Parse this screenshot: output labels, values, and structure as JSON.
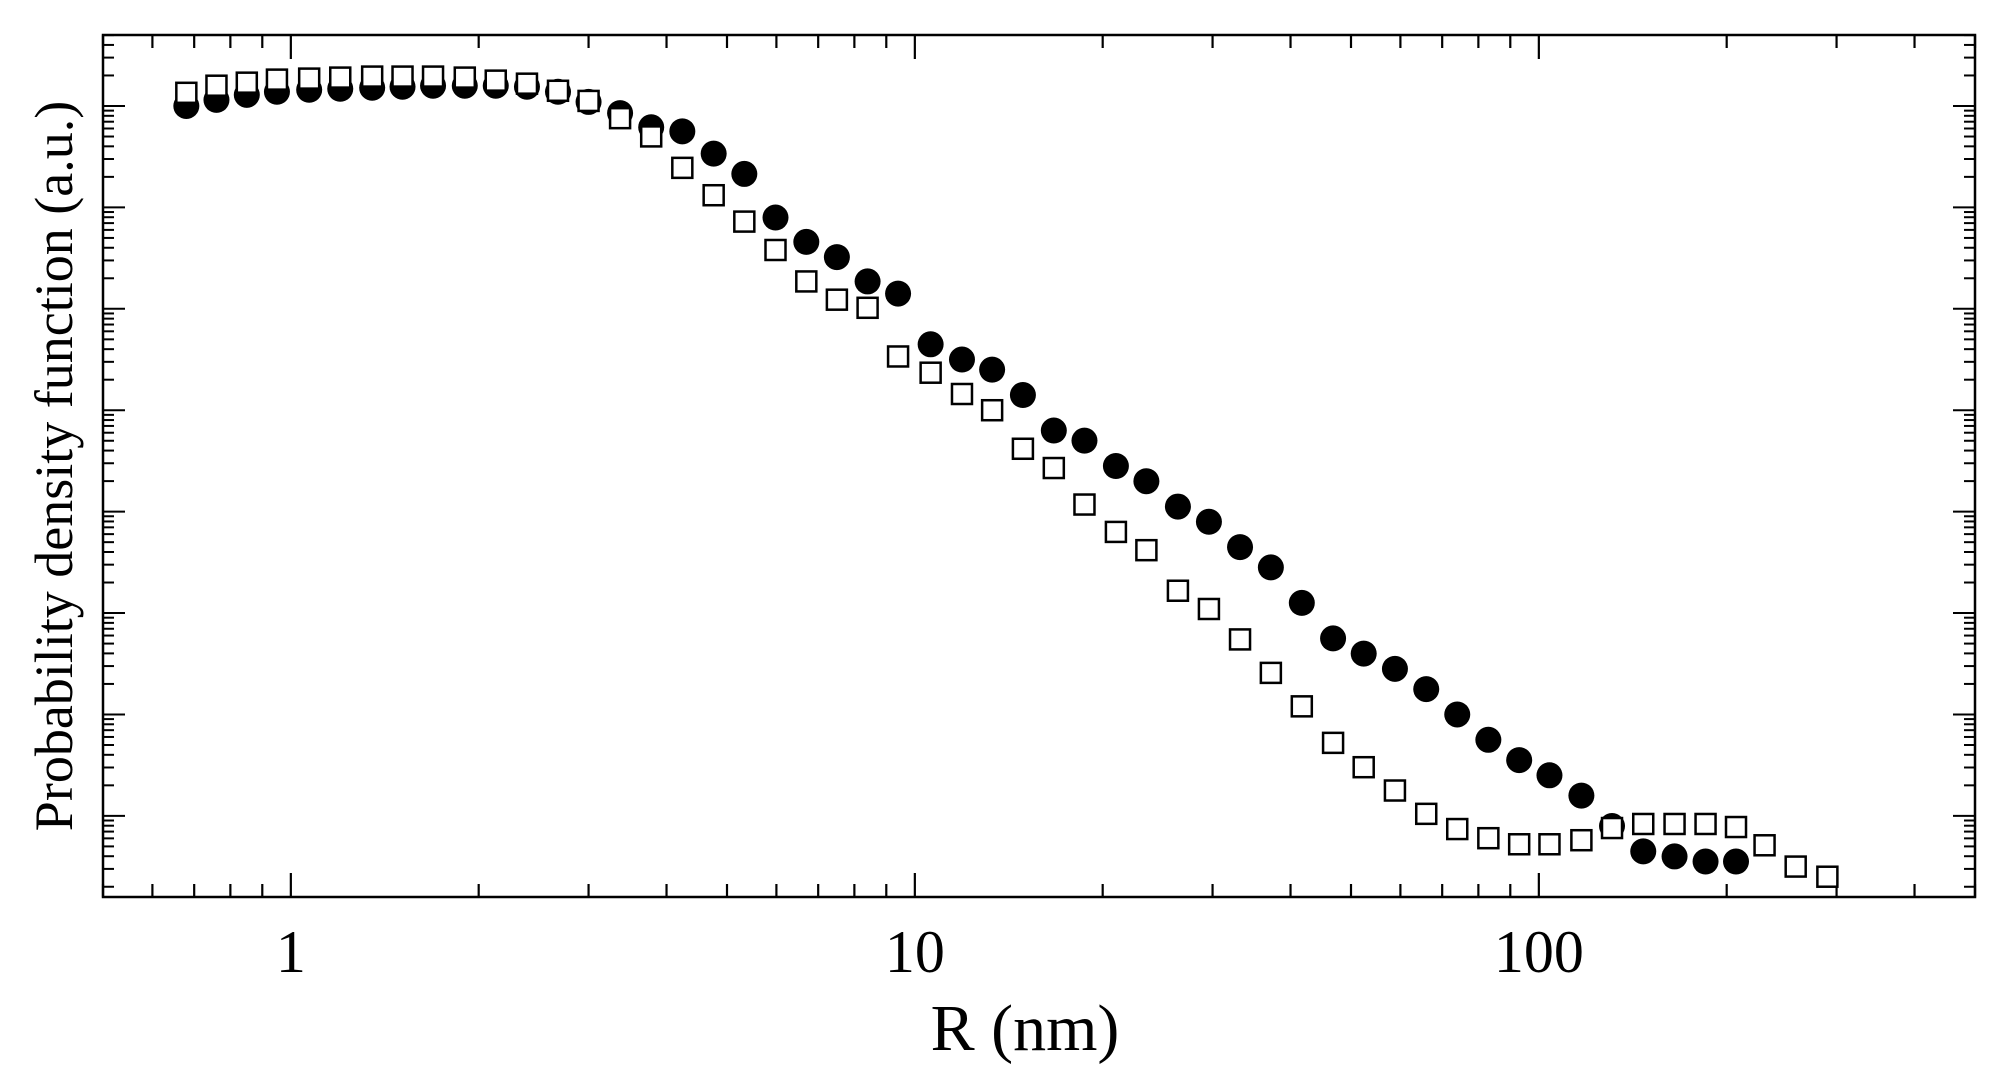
{
  "chart_data": {
    "type": "scatter",
    "xlabel": "R (nm)",
    "ylabel": "Probability density function (a.u.)",
    "x_scale": "log",
    "y_scale": "log",
    "xlim": [
      0.5,
      500
    ],
    "y_decades": [
      -6.3,
      2.2
    ],
    "grid": false,
    "legend": "none",
    "x_tick_labels": [
      {
        "value": 1,
        "label": "1"
      },
      {
        "value": 10,
        "label": "10"
      },
      {
        "value": 100,
        "label": "100"
      }
    ],
    "y_major_decades": [
      -5.5,
      -4.5,
      -3.5,
      -2.5,
      -1.5,
      -0.5,
      0.5,
      1.5,
      2.5,
      3.5
    ],
    "series": [
      {
        "marker": "filled-circle",
        "color": "#000000",
        "x": [
          0.68,
          0.76,
          0.85,
          0.95,
          1.07,
          1.2,
          1.35,
          1.51,
          1.69,
          1.9,
          2.13,
          2.39,
          2.68,
          3.0,
          3.37,
          3.78,
          4.24,
          4.76,
          5.33,
          5.98,
          6.7,
          7.5,
          8.4,
          9.4,
          10.6,
          11.9,
          13.3,
          14.9,
          16.7,
          18.7,
          21.0,
          23.5,
          26.4,
          29.6,
          33.2,
          37.2,
          41.7,
          46.8,
          52.4,
          58.8,
          66.0,
          74.0,
          83.0,
          93.0,
          104.0,
          117.0,
          131.0,
          147.0,
          165.0,
          185.0,
          207.0
        ],
        "y": [
          1.5,
          1.56,
          1.61,
          1.64,
          1.66,
          1.67,
          1.68,
          1.69,
          1.7,
          1.7,
          1.7,
          1.69,
          1.64,
          1.54,
          1.43,
          1.29,
          1.25,
          1.03,
          0.83,
          0.4,
          0.16,
          0.01,
          -0.23,
          -0.35,
          -0.85,
          -1.0,
          -1.1,
          -1.35,
          -1.7,
          -1.8,
          -2.05,
          -2.2,
          -2.45,
          -2.6,
          -2.85,
          -3.05,
          -3.4,
          -3.75,
          -3.9,
          -4.05,
          -4.25,
          -4.5,
          -4.75,
          -4.95,
          -5.1,
          -5.3,
          -5.6,
          -5.85,
          -5.9,
          -5.95,
          -5.95
        ]
      },
      {
        "marker": "open-square",
        "color": "#000000",
        "x": [
          0.68,
          0.76,
          0.85,
          0.95,
          1.07,
          1.2,
          1.35,
          1.51,
          1.69,
          1.9,
          2.13,
          2.39,
          2.68,
          3.0,
          3.37,
          3.78,
          4.24,
          4.76,
          5.33,
          5.98,
          6.7,
          7.5,
          8.4,
          9.4,
          10.6,
          11.9,
          13.3,
          14.9,
          16.7,
          18.7,
          21.0,
          23.5,
          26.4,
          29.6,
          33.2,
          37.2,
          41.7,
          46.8,
          52.4,
          58.8,
          66.0,
          74.0,
          83.0,
          93.0,
          104.0,
          117.0,
          131.0,
          147.0,
          165.0,
          185.0,
          207.0,
          230.0,
          258.0,
          290.0
        ],
        "y": [
          1.63,
          1.7,
          1.73,
          1.76,
          1.77,
          1.78,
          1.79,
          1.79,
          1.79,
          1.78,
          1.75,
          1.72,
          1.65,
          1.55,
          1.38,
          1.2,
          0.89,
          0.62,
          0.36,
          0.08,
          -0.23,
          -0.41,
          -0.49,
          -0.97,
          -1.13,
          -1.34,
          -1.5,
          -1.88,
          -2.07,
          -2.43,
          -2.7,
          -2.88,
          -3.28,
          -3.46,
          -3.76,
          -4.09,
          -4.42,
          -4.78,
          -5.02,
          -5.25,
          -5.48,
          -5.63,
          -5.72,
          -5.78,
          -5.78,
          -5.74,
          -5.62,
          -5.58,
          -5.58,
          -5.58,
          -5.61,
          -5.79,
          -6.0,
          -6.1
        ]
      }
    ]
  }
}
